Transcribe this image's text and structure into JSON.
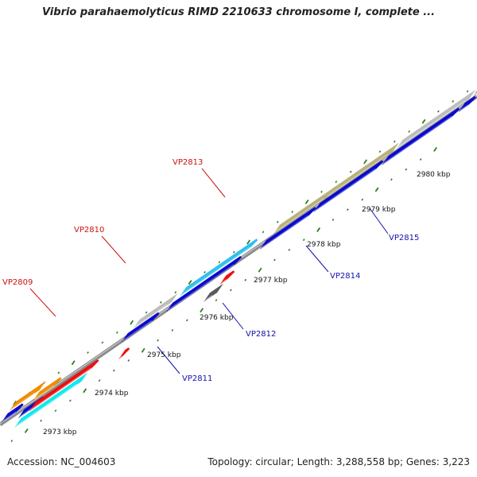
{
  "title": "Vibrio parahaemolyticus RIMD 2210633 chromosome I, complete ...",
  "footer": {
    "accession": "Accession: NC_004603",
    "summary": "Topology: circular; Length: 3,288,558 bp; Genes: 3,223"
  },
  "colors": {
    "backbone": "#8a8a8a",
    "tick": "#2e7d1e",
    "label_forward": "#cc1111",
    "label_reverse": "#1111aa",
    "blue": "#0a0acc",
    "gray": "#bdbdbd",
    "orange": "#f08c00",
    "cyan": "#12e8ec",
    "red": "#ee0e0e",
    "lightblue": "#2fc0ee",
    "olive": "#b8b27a",
    "darkgray": "#5a5a5a"
  },
  "scale_labels": [
    "2973 kbp",
    "2974 kbp",
    "2975 kbp",
    "2976 kbp",
    "2977 kbp",
    "2978 kbp",
    "2979 kbp",
    "2980 kbp"
  ],
  "gene_labels": [
    {
      "id": "VP2809",
      "strand": "forward"
    },
    {
      "id": "VP2810",
      "strand": "forward"
    },
    {
      "id": "VP2813",
      "strand": "forward"
    },
    {
      "id": "VP2811",
      "strand": "reverse"
    },
    {
      "id": "VP2812",
      "strand": "reverse"
    },
    {
      "id": "VP2814",
      "strand": "reverse"
    },
    {
      "id": "VP2815",
      "strand": "reverse"
    }
  ]
}
